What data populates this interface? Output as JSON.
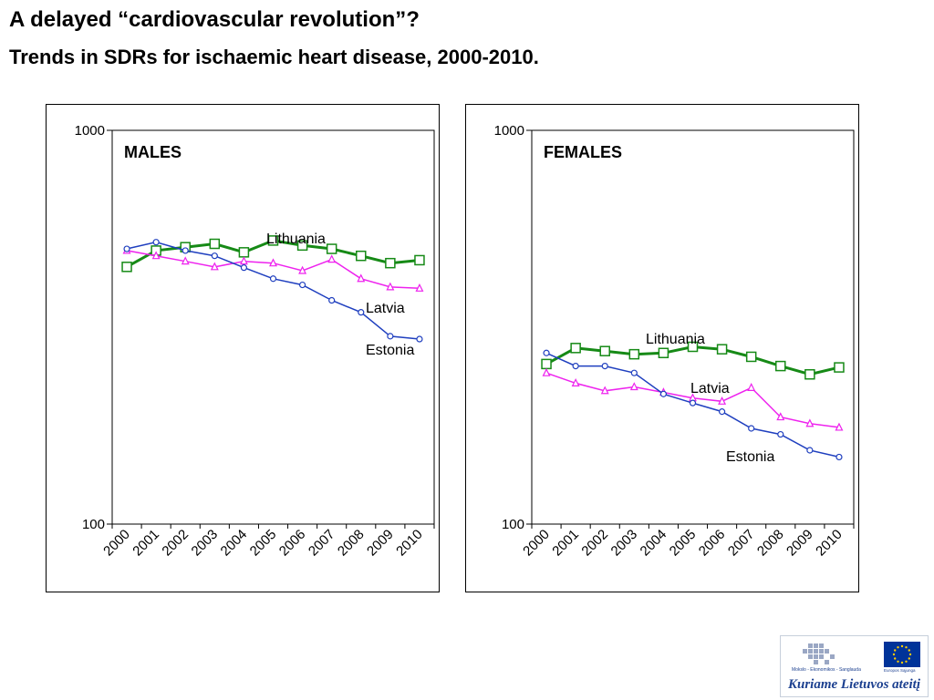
{
  "header": {
    "title": "A delayed “cardiovascular revolution”?",
    "subtitle": "Trends in SDRs for ischaemic heart disease, 2000-2010."
  },
  "charts": [
    {
      "panel_label": "MALES",
      "y_ticks": [
        "1000",
        "100"
      ]
    },
    {
      "panel_label": "FEMALES",
      "y_ticks": [
        "1000",
        "100"
      ]
    }
  ],
  "chart_data": [
    {
      "type": "line",
      "title": "MALES",
      "y_scale": "log",
      "ylim": [
        100,
        1000
      ],
      "grid": false,
      "legend": "none (series labelled inline)",
      "categories": [
        "2000",
        "2001",
        "2002",
        "2003",
        "2004",
        "2005",
        "2006",
        "2007",
        "2008",
        "2009",
        "2010"
      ],
      "series": [
        {
          "name": "Lithuania",
          "color": "#168a16",
          "marker": "square",
          "values": [
            450,
            495,
            505,
            515,
            490,
            525,
            510,
            500,
            480,
            460,
            468
          ]
        },
        {
          "name": "Latvia",
          "color": "#ee22ee",
          "marker": "triangle",
          "values": [
            495,
            480,
            465,
            450,
            465,
            460,
            440,
            470,
            420,
            400,
            397
          ]
        },
        {
          "name": "Estonia",
          "color": "#1f3fbf",
          "marker": "circle",
          "values": [
            500,
            520,
            495,
            480,
            448,
            420,
            405,
            370,
            345,
            300,
            295
          ]
        }
      ]
    },
    {
      "type": "line",
      "title": "FEMALES",
      "y_scale": "log",
      "ylim": [
        100,
        1000
      ],
      "grid": false,
      "legend": "none (series labelled inline)",
      "categories": [
        "2000",
        "2001",
        "2002",
        "2003",
        "2004",
        "2005",
        "2006",
        "2007",
        "2008",
        "2009",
        "2010"
      ],
      "series": [
        {
          "name": "Lithuania",
          "color": "#168a16",
          "marker": "square",
          "values": [
            255,
            280,
            275,
            270,
            272,
            282,
            278,
            266,
            252,
            240,
            250
          ]
        },
        {
          "name": "Latvia",
          "color": "#ee22ee",
          "marker": "triangle",
          "values": [
            242,
            228,
            218,
            223,
            216,
            209,
            205,
            222,
            187,
            180,
            176
          ]
        },
        {
          "name": "Estonia",
          "color": "#1f3fbf",
          "marker": "circle",
          "values": [
            272,
            252,
            252,
            242,
            214,
            203,
            193,
            175,
            169,
            154,
            148
          ]
        }
      ]
    }
  ],
  "logo": {
    "caption": "Kuriame Lietuvos ateitį",
    "org_text": "Mokslo - Ekonomikos - Sanglauda",
    "eu_text": "Europos Sąjunga",
    "colors": {
      "blue": "#1b3f8f",
      "eu_blue": "#003399",
      "eu_star": "#ffcc00"
    }
  }
}
